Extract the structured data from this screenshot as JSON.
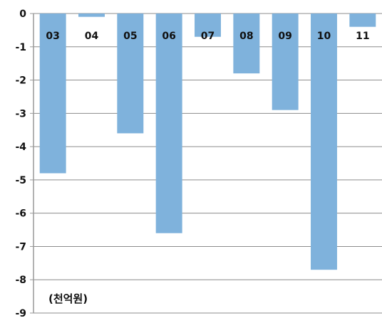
{
  "chart_data": {
    "type": "bar",
    "categories": [
      "03",
      "04",
      "05",
      "06",
      "07",
      "08",
      "09",
      "10",
      "11"
    ],
    "values": [
      -4.8,
      -0.1,
      -3.6,
      -6.6,
      -0.7,
      -1.8,
      -2.9,
      -7.7,
      -0.4
    ],
    "ylim": [
      -9,
      0
    ],
    "yticks": [
      0,
      -1,
      -2,
      -3,
      -4,
      -5,
      -6,
      -7,
      -8,
      -9
    ],
    "annotation": "(천억원)",
    "grid": true,
    "bar_color": "#7fb2dc",
    "grid_color": "#8c8c8c",
    "axis_color": "#999999",
    "legend": "none"
  }
}
